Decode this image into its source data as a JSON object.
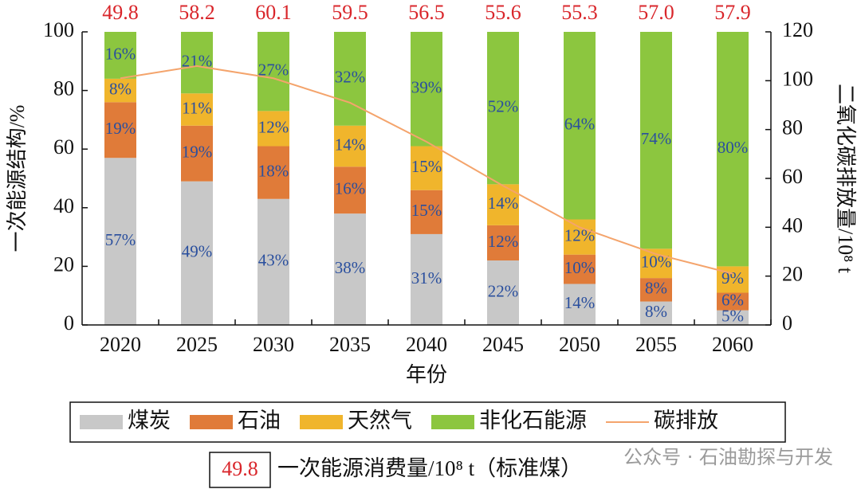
{
  "chart_data": {
    "type": "bar",
    "stacked": true,
    "categories": [
      "2020",
      "2025",
      "2030",
      "2035",
      "2040",
      "2045",
      "2050",
      "2055",
      "2060"
    ],
    "xlabel": "年份",
    "ylabel": "一次能源结构/%",
    "y2label": "二氧化碳排放量/10⁸ t",
    "ylim": [
      0,
      100
    ],
    "yticks": [
      0,
      20,
      40,
      60,
      80,
      100
    ],
    "y2lim": [
      0,
      120
    ],
    "y2ticks": [
      0,
      20,
      40,
      60,
      80,
      100,
      120
    ],
    "series": [
      {
        "name": "煤炭",
        "color": "#c8c8c8",
        "values": [
          57,
          49,
          43,
          38,
          31,
          22,
          14,
          8,
          5
        ],
        "value_labels": [
          "57%",
          "49%",
          "43%",
          "38%",
          "31%",
          "22%",
          "14%",
          "8%",
          "5%"
        ]
      },
      {
        "name": "石油",
        "color": "#e07b39",
        "values": [
          19,
          19,
          18,
          16,
          15,
          12,
          10,
          8,
          6
        ],
        "value_labels": [
          "19%",
          "19%",
          "18%",
          "16%",
          "15%",
          "12%",
          "10%",
          "8%",
          "6%"
        ]
      },
      {
        "name": "天然气",
        "color": "#f0b52c",
        "values": [
          8,
          11,
          12,
          14,
          15,
          14,
          12,
          10,
          9
        ],
        "value_labels": [
          "8%",
          "11%",
          "12%",
          "14%",
          "15%",
          "14%",
          "12%",
          "10%",
          "9%"
        ]
      },
      {
        "name": "非化石能源",
        "color": "#8cc63f",
        "values": [
          16,
          21,
          27,
          32,
          39,
          52,
          64,
          74,
          80
        ],
        "value_labels": [
          "16%",
          "21%",
          "27%",
          "32%",
          "39%",
          "52%",
          "64%",
          "74%",
          "80%"
        ]
      },
      {
        "name": "碳排放",
        "color": "#f4a46c",
        "type": "line",
        "axis": "y2",
        "values": [
          101,
          106,
          101,
          91,
          75,
          57,
          40,
          29,
          21
        ]
      }
    ],
    "totals": {
      "name": "一次能源消费量/10⁸ t（标准煤）",
      "color": "#d9262b",
      "values": [
        49.8,
        58.2,
        60.1,
        59.5,
        56.5,
        55.6,
        55.3,
        57.0,
        57.9
      ],
      "value_labels": [
        "49.8",
        "58.2",
        "60.1",
        "59.5",
        "56.5",
        "55.6",
        "55.3",
        "57.0",
        "57.9"
      ]
    },
    "watermark": "公众号 · 石油勘探与开发"
  }
}
